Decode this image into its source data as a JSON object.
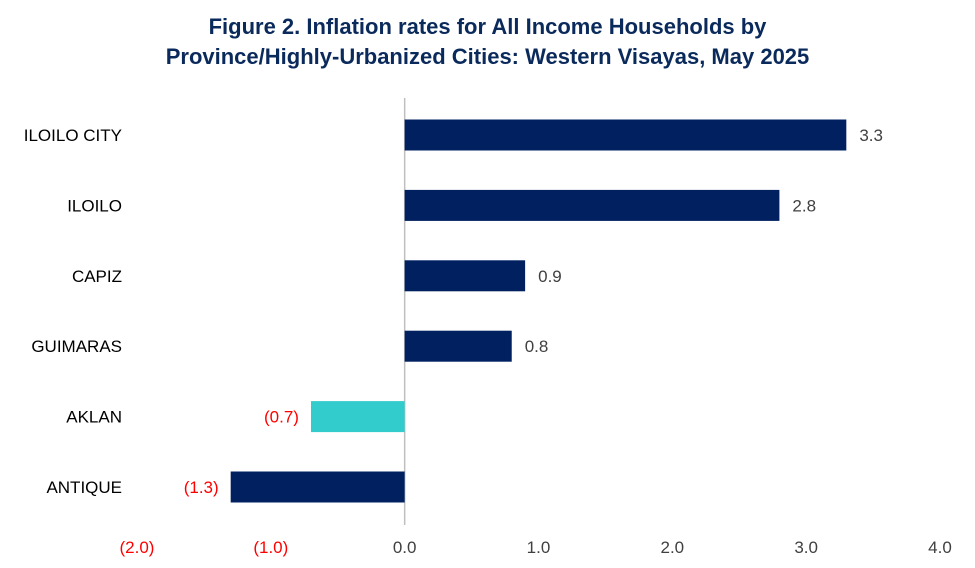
{
  "chart_data": {
    "type": "bar",
    "orientation": "horizontal",
    "title_lines": [
      "Figure 2. Inflation rates for All Income Households by",
      "Province/Highly-Urbanized Cities: Western Visayas, May 2025"
    ],
    "categories": [
      "ILOILO CITY",
      "ILOILO",
      "CAPIZ",
      "GUIMARAS",
      "AKLAN",
      "ANTIQUE"
    ],
    "values": [
      3.3,
      2.8,
      0.9,
      0.8,
      -0.7,
      -1.3
    ],
    "data_labels": [
      "3.3",
      "2.8",
      "0.9",
      "0.8",
      "(0.7)",
      "(1.3)"
    ],
    "bar_colors": [
      "#002060",
      "#002060",
      "#002060",
      "#002060",
      "#33CCCC",
      "#002060"
    ],
    "xlim": [
      -2.0,
      4.0
    ],
    "ticks": [
      -2.0,
      -1.0,
      0.0,
      1.0,
      2.0,
      3.0,
      4.0
    ],
    "tick_labels": [
      "(2.0)",
      "(1.0)",
      "0.0",
      "1.0",
      "2.0",
      "3.0",
      "4.0"
    ],
    "negative_label_color": "#FF0000",
    "positive_label_color": "#404040",
    "axis_color": "#BFBFBF",
    "grid": false,
    "legend": "none"
  }
}
